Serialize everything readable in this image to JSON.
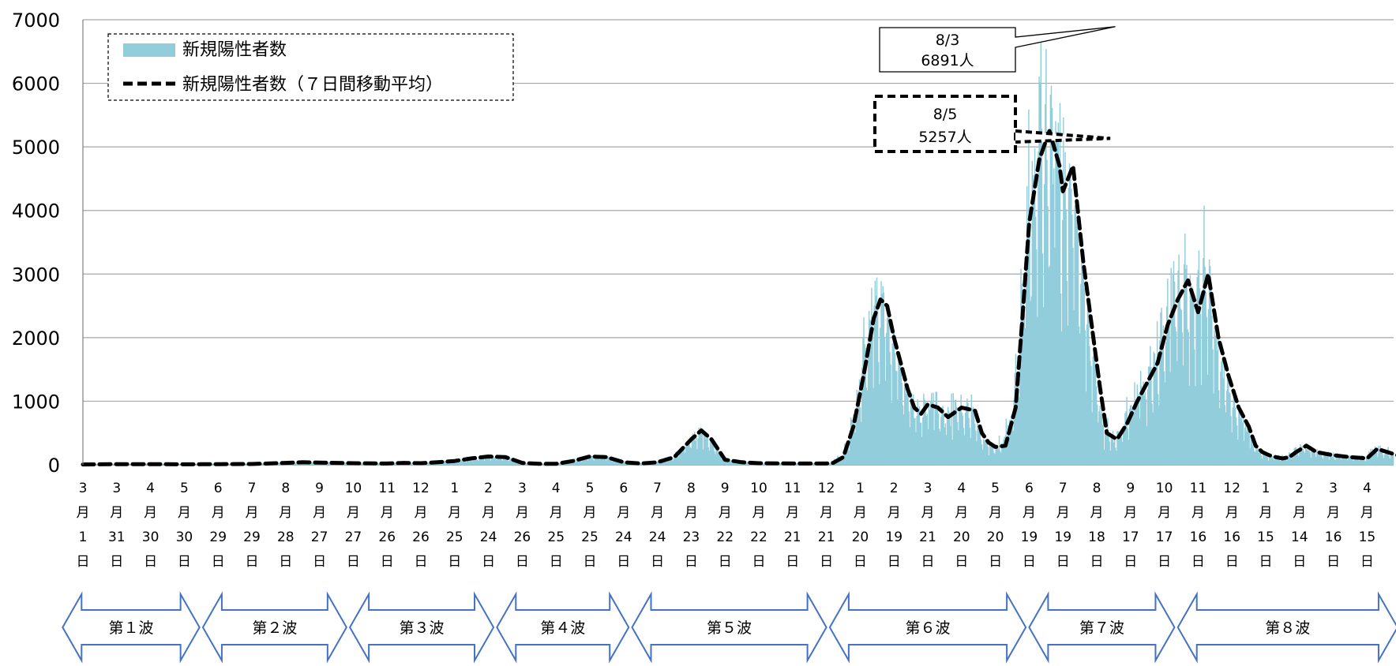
{
  "chart_data": {
    "type": "bar",
    "y_ticks": [
      "0",
      "1000",
      "2000",
      "3000",
      "4000",
      "5000",
      "6000",
      "7000"
    ],
    "ylim": [
      0,
      7000
    ],
    "grid": true,
    "legend_position": "top-left",
    "x_tick_labels": [
      [
        "3",
        "月",
        "1",
        "日"
      ],
      [
        "3",
        "月",
        "31",
        "日"
      ],
      [
        "4",
        "月",
        "30",
        "日"
      ],
      [
        "5",
        "月",
        "30",
        "日"
      ],
      [
        "6",
        "月",
        "29",
        "日"
      ],
      [
        "7",
        "月",
        "29",
        "日"
      ],
      [
        "8",
        "月",
        "28",
        "日"
      ],
      [
        "9",
        "月",
        "27",
        "日"
      ],
      [
        "10",
        "月",
        "27",
        "日"
      ],
      [
        "11",
        "月",
        "26",
        "日"
      ],
      [
        "12",
        "月",
        "26",
        "日"
      ],
      [
        "1",
        "月",
        "25",
        "日"
      ],
      [
        "2",
        "月",
        "24",
        "日"
      ],
      [
        "3",
        "月",
        "26",
        "日"
      ],
      [
        "4",
        "月",
        "25",
        "日"
      ],
      [
        "5",
        "月",
        "25",
        "日"
      ],
      [
        "6",
        "月",
        "24",
        "日"
      ],
      [
        "7",
        "月",
        "24",
        "日"
      ],
      [
        "8",
        "月",
        "23",
        "日"
      ],
      [
        "9",
        "月",
        "22",
        "日"
      ],
      [
        "10",
        "月",
        "22",
        "日"
      ],
      [
        "11",
        "月",
        "21",
        "日"
      ],
      [
        "12",
        "月",
        "21",
        "日"
      ],
      [
        "1",
        "月",
        "20",
        "日"
      ],
      [
        "2",
        "月",
        "19",
        "日"
      ],
      [
        "3",
        "月",
        "21",
        "日"
      ],
      [
        "4",
        "月",
        "20",
        "日"
      ],
      [
        "5",
        "月",
        "20",
        "日"
      ],
      [
        "6",
        "月",
        "19",
        "日"
      ],
      [
        "7",
        "月",
        "19",
        "日"
      ],
      [
        "8",
        "月",
        "18",
        "日"
      ],
      [
        "9",
        "月",
        "17",
        "日"
      ],
      [
        "10",
        "月",
        "17",
        "日"
      ],
      [
        "11",
        "月",
        "16",
        "日"
      ],
      [
        "12",
        "月",
        "16",
        "日"
      ],
      [
        "1",
        "月",
        "15",
        "日"
      ],
      [
        "2",
        "月",
        "14",
        "日"
      ],
      [
        "3",
        "月",
        "16",
        "日"
      ],
      [
        "4",
        "月",
        "15",
        "日"
      ]
    ],
    "series": [
      {
        "name": "新規陽性者数",
        "kind": "bar",
        "color": "#92CDDC"
      },
      {
        "name": "新規陽性者数（７日間移動平均）",
        "kind": "line",
        "style": "dashed",
        "color": "#000000"
      }
    ],
    "series_points": {
      "x_index": [
        0,
        0.5,
        1,
        2,
        3,
        4,
        5,
        6,
        6.5,
        7,
        8,
        9,
        9.5,
        10,
        10.5,
        11,
        11.5,
        12,
        12.5,
        13,
        13.5,
        14,
        14.5,
        15,
        15.5,
        16,
        16.5,
        17,
        17.5,
        18,
        18.3,
        18.6,
        19,
        19.5,
        20,
        21,
        22,
        22.2,
        22.5,
        22.8,
        23.1,
        23.4,
        23.6,
        23.8,
        24,
        24.2,
        24.4,
        24.6,
        24.8,
        25,
        25.3,
        25.6,
        26,
        26.4,
        26.6,
        26.8,
        27,
        27.3,
        27.6,
        27.8,
        28,
        28.3,
        28.6,
        28.9,
        29,
        29.3,
        29.6,
        29.9,
        30.1,
        30.3,
        30.6,
        30.9,
        31.2,
        31.5,
        31.8,
        32.1,
        32.4,
        32.7,
        33,
        33.3,
        33.6,
        33.9,
        34.2,
        34.5,
        34.7,
        34.9,
        35.1,
        35.3,
        35.5,
        35.7,
        35.9,
        36.2,
        36.5,
        37,
        37.5,
        38,
        38.3,
        38.6,
        38.9
      ],
      "moving_avg": [
        5,
        8,
        10,
        10,
        8,
        10,
        12,
        30,
        40,
        35,
        25,
        20,
        30,
        25,
        40,
        60,
        100,
        130,
        120,
        30,
        15,
        15,
        60,
        130,
        120,
        40,
        20,
        40,
        120,
        400,
        540,
        400,
        80,
        40,
        25,
        20,
        20,
        30,
        120,
        600,
        1400,
        2300,
        2600,
        2500,
        2000,
        1600,
        1200,
        900,
        800,
        950,
        900,
        750,
        900,
        850,
        500,
        350,
        280,
        300,
        900,
        2300,
        3800,
        4800,
        5250,
        4700,
        4300,
        4700,
        3200,
        2000,
        1200,
        500,
        400,
        650,
        1000,
        1300,
        1600,
        2200,
        2600,
        2900,
        2400,
        3000,
        2000,
        1400,
        900,
        600,
        300,
        200,
        150,
        120,
        100,
        120,
        200,
        300,
        200,
        150,
        120,
        100,
        250,
        200,
        150
      ],
      "daily_envelope": [
        10,
        15,
        20,
        20,
        15,
        20,
        25,
        50,
        60,
        55,
        40,
        30,
        45,
        40,
        60,
        90,
        140,
        150,
        130,
        40,
        20,
        25,
        90,
        160,
        150,
        60,
        30,
        60,
        160,
        450,
        600,
        450,
        110,
        60,
        40,
        30,
        30,
        50,
        200,
        900,
        2200,
        2800,
        3000,
        2700,
        2200,
        1800,
        1400,
        1100,
        1150,
        1100,
        1150,
        1100,
        1150,
        1100,
        700,
        450,
        400,
        500,
        1300,
        2800,
        5300,
        6891,
        6500,
        5200,
        5800,
        4600,
        3300,
        2300,
        1300,
        700,
        800,
        1000,
        1300,
        1600,
        2100,
        2800,
        3300,
        3800,
        2900,
        4270,
        2300,
        1500,
        1000,
        700,
        400,
        300,
        220,
        180,
        150,
        160,
        250,
        350,
        260,
        200,
        160,
        150,
        300,
        300,
        250
      ]
    },
    "annotations": [
      {
        "date": "8/3",
        "value": "6891人",
        "value_num": 6891,
        "x_index": 30.55,
        "border": "solid"
      },
      {
        "date": "8/5",
        "value": "5257人",
        "value_num": 5257,
        "x_index": 30.4,
        "border": "dashed"
      }
    ],
    "waves": [
      {
        "label": "第１波",
        "from_tick": -0.6,
        "to_tick": 3.45
      },
      {
        "label": "第２波",
        "from_tick": 3.55,
        "to_tick": 7.8
      },
      {
        "label": "第３波",
        "from_tick": 7.9,
        "to_tick": 12.15
      },
      {
        "label": "第４波",
        "from_tick": 12.25,
        "to_tick": 16.15
      },
      {
        "label": "第５波",
        "from_tick": 16.25,
        "to_tick": 22.0
      },
      {
        "label": "第６波",
        "from_tick": 22.1,
        "to_tick": 27.9
      },
      {
        "label": "第７波",
        "from_tick": 28.0,
        "to_tick": 32.3
      },
      {
        "label": "第８波",
        "from_tick": 32.4,
        "to_tick": 38.9
      }
    ]
  }
}
